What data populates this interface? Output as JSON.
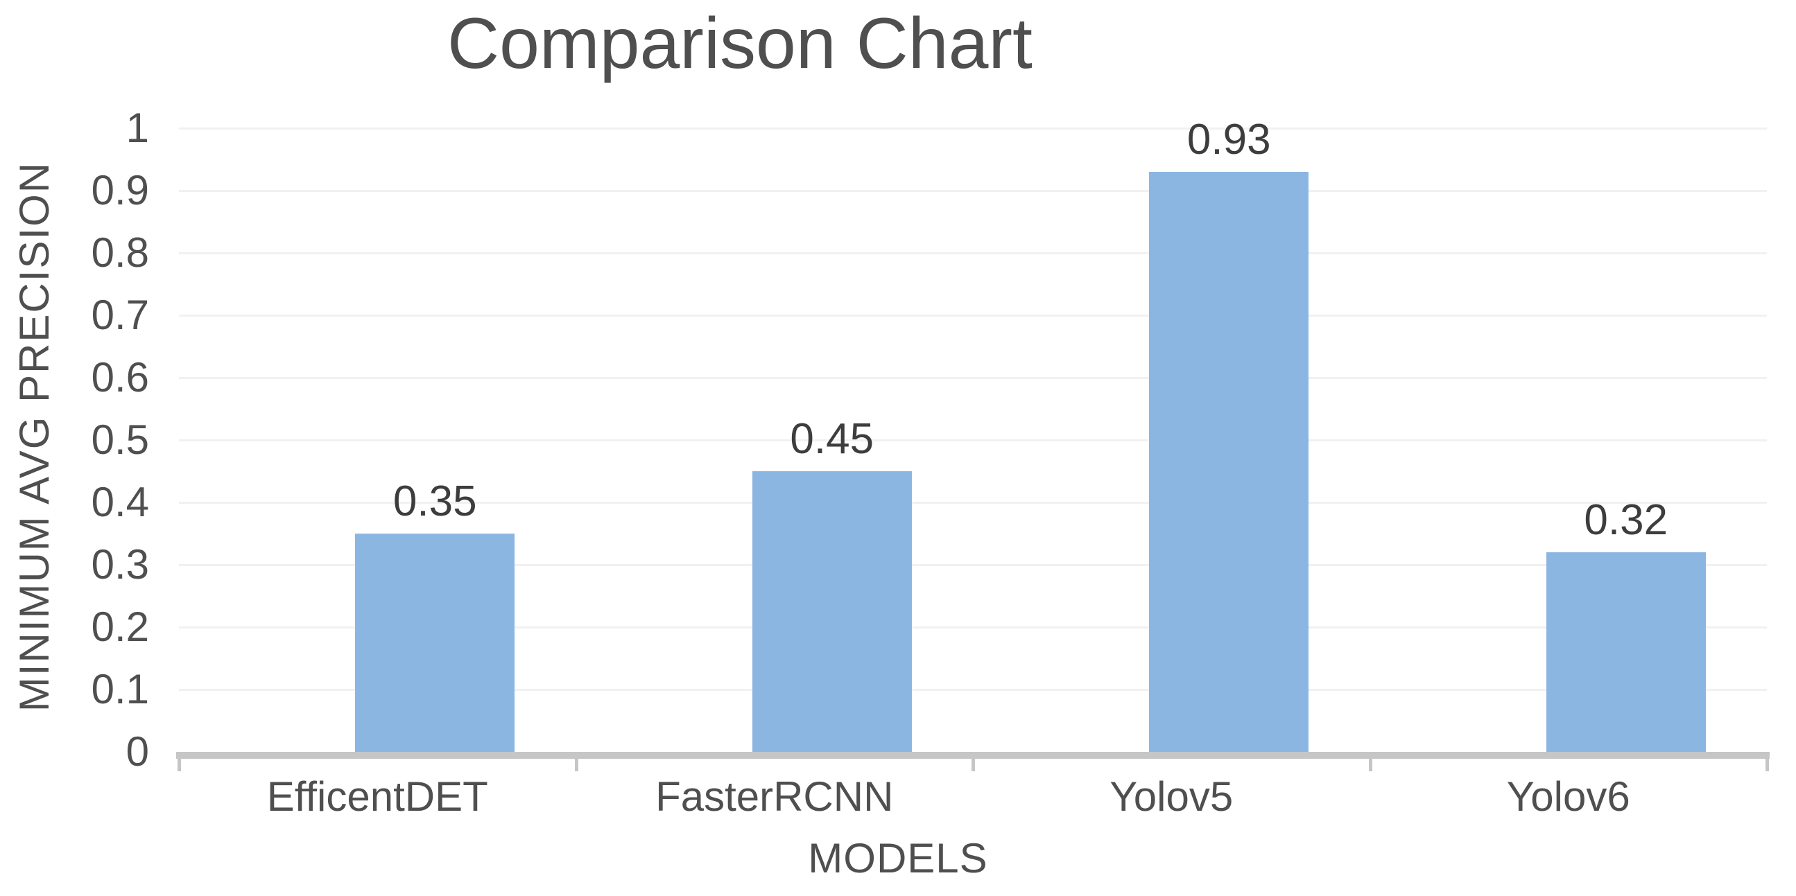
{
  "chart_data": {
    "type": "bar",
    "title": "Comparison Chart",
    "xlabel": "MODELS",
    "ylabel": "MINIMUM AVG PRECISION",
    "categories": [
      "EfficentDET",
      "FasterRCNN",
      "Yolov5",
      "Yolov6"
    ],
    "series": [
      {
        "name": "Minimum Avg Precision",
        "values": [
          0.35,
          0.45,
          0.93,
          0.32
        ],
        "data_labels": [
          "0.35",
          "0.45",
          "0.93",
          "0.32"
        ]
      }
    ],
    "ylim": [
      0,
      1
    ],
    "ytick_labels": [
      "1",
      "0.9",
      "0.8",
      "0.7",
      "0.6",
      "0.5",
      "0.4",
      "0.3",
      "0.2",
      "0.1",
      "0"
    ],
    "grid": "horizontal",
    "legend": "none",
    "colors": {
      "bar": "#8CB6E2",
      "axis": "#C6C6C6",
      "gridline": "#F1F1F1",
      "text": "#4F4F4F",
      "data_label": "#3D3D3D"
    }
  }
}
